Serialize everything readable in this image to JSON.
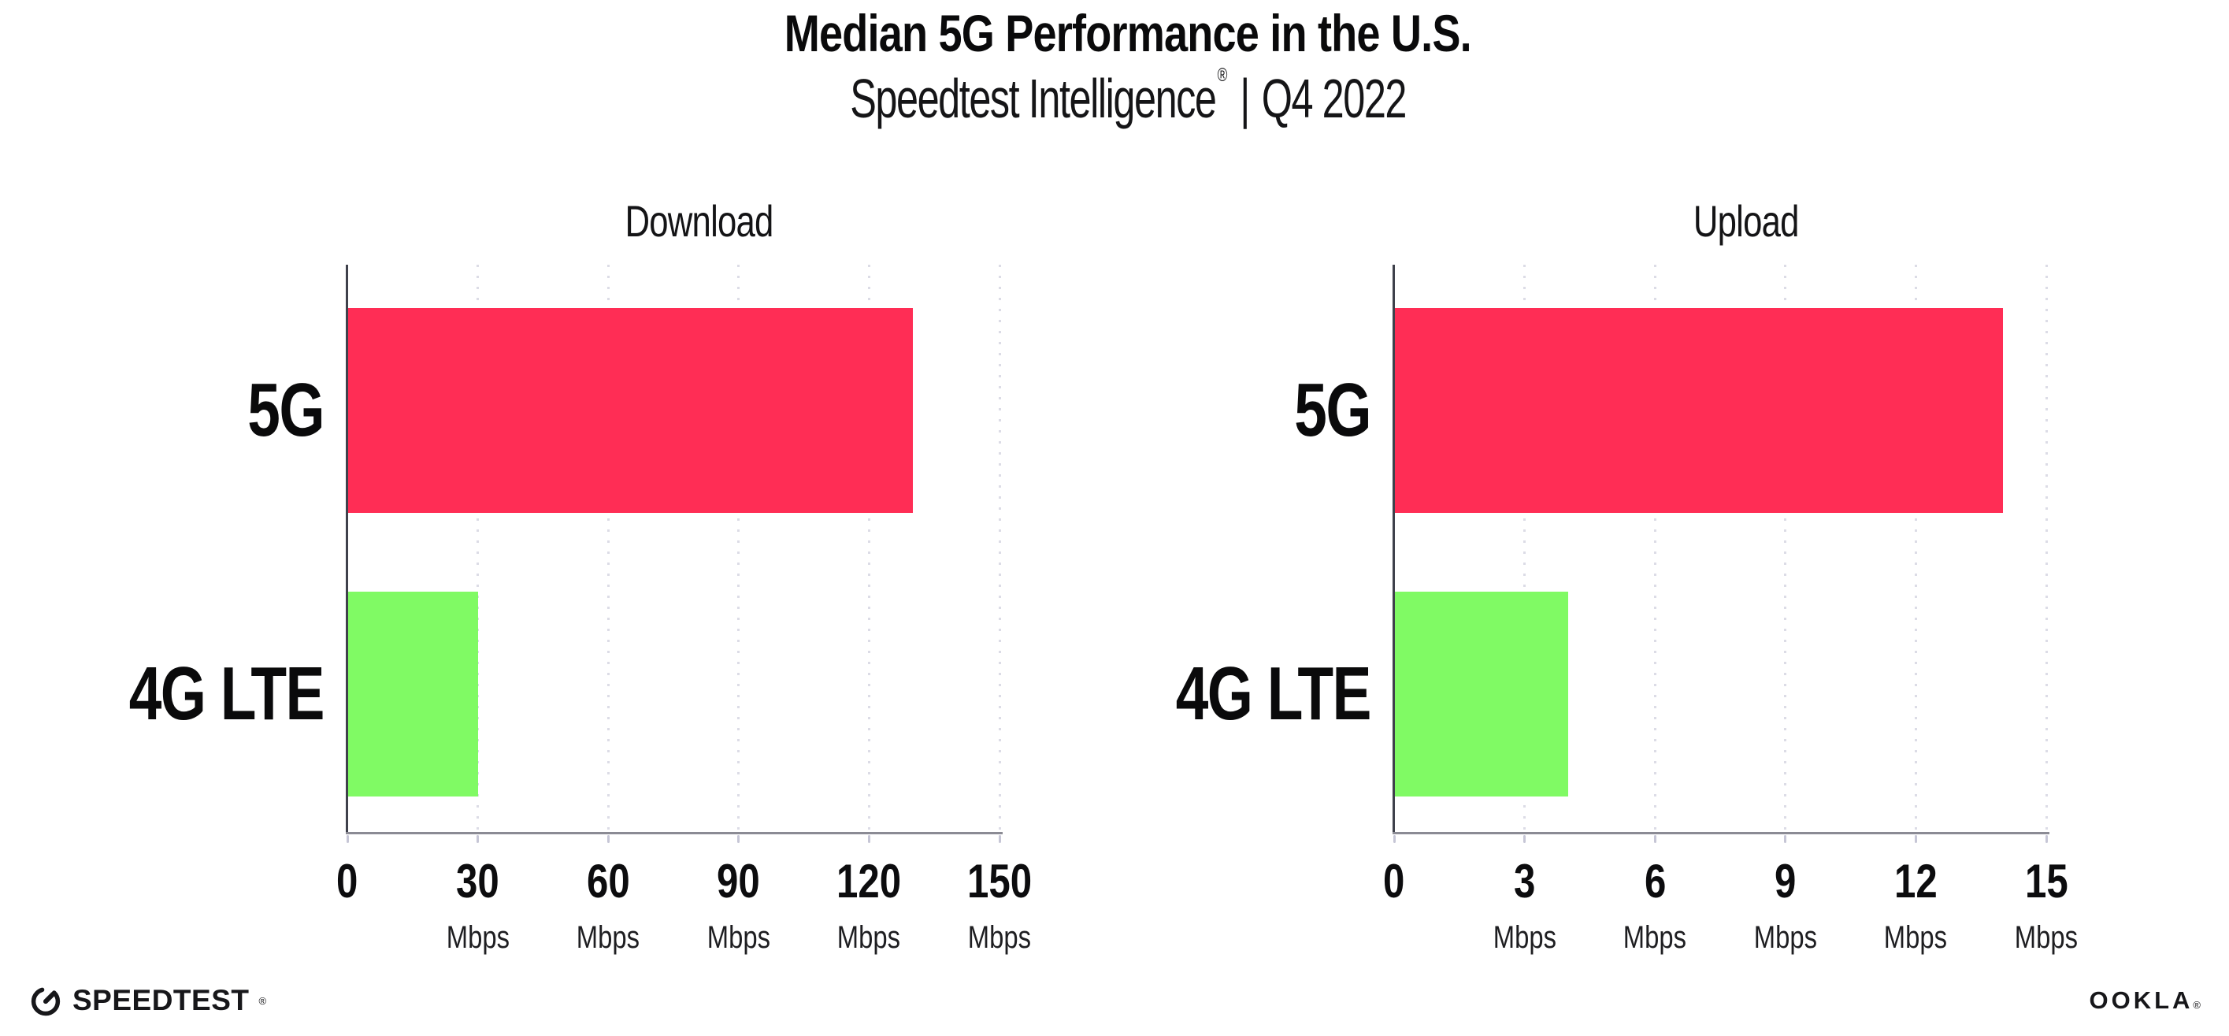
{
  "title": "Median 5G Performance in the U.S.",
  "subtitle": {
    "brand": "Speedtest Intelligence",
    "registered_mark": "®",
    "separator": "|",
    "period": "Q4 2022"
  },
  "chart_data": [
    {
      "type": "bar",
      "orientation": "horizontal",
      "title": "Download",
      "categories": [
        "5G",
        "4G LTE"
      ],
      "values": [
        130,
        30
      ],
      "value_unit": "Mbps",
      "xlim": [
        0,
        150
      ],
      "xticks": [
        0,
        30,
        60,
        90,
        120,
        150
      ],
      "xtick_unit": "Mbps",
      "bar_colors": [
        "#FF2D55",
        "#80FA64"
      ],
      "grid": "vertical-dotted",
      "legend": "none"
    },
    {
      "type": "bar",
      "orientation": "horizontal",
      "title": "Upload",
      "categories": [
        "5G",
        "4G LTE"
      ],
      "values": [
        14,
        4
      ],
      "value_unit": "Mbps",
      "xlim": [
        0,
        15
      ],
      "xticks": [
        0,
        3,
        6,
        9,
        12,
        15
      ],
      "xtick_unit": "Mbps",
      "bar_colors": [
        "#FF2D55",
        "#80FA64"
      ],
      "grid": "vertical-dotted",
      "legend": "none"
    }
  ],
  "footer": {
    "speedtest_label": "SPEEDTEST",
    "speedtest_mark": "®",
    "ookla_label": "OOKLA",
    "ookla_mark": "®"
  }
}
